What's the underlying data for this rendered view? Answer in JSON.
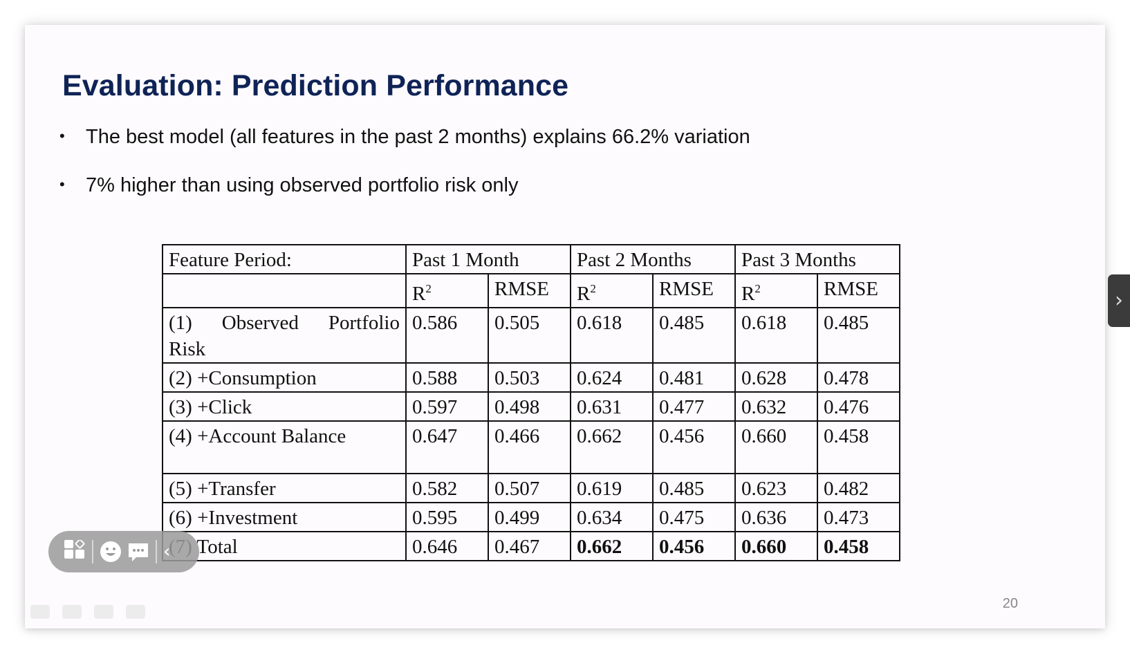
{
  "slide": {
    "title": "Evaluation: Prediction Performance",
    "bullets": [
      {
        "marker": "•",
        "text": "The best model (all features in the past 2 months) explains 66.2% variation"
      },
      {
        "marker": "•",
        "text": "7% higher than using observed portfolio risk only"
      }
    ],
    "page_number": "20"
  },
  "table": {
    "feature_period_label": "Feature Period:",
    "periods": [
      "Past 1 Month",
      "Past 2 Months",
      "Past 3 Months"
    ],
    "metric_r": "R",
    "metric_r_sup": "2",
    "metric_rmse": "RMSE",
    "row1_label_parts": [
      "(1)",
      "Observed",
      "Portfolio"
    ],
    "row1_label_line2": "Risk",
    "rows": [
      {
        "label": "(1) Observed Portfolio Risk",
        "values": [
          "0.586",
          "0.505",
          "0.618",
          "0.485",
          "0.618",
          "0.485"
        ]
      },
      {
        "label": "(2) +Consumption",
        "values": [
          "0.588",
          "0.503",
          "0.624",
          "0.481",
          "0.628",
          "0.478"
        ]
      },
      {
        "label": "(3) +Click",
        "values": [
          "0.597",
          "0.498",
          "0.631",
          "0.477",
          "0.632",
          "0.476"
        ]
      },
      {
        "label": "(4) +Account Balance",
        "values": [
          "0.647",
          "0.466",
          "0.662",
          "0.456",
          "0.660",
          "0.458"
        ]
      },
      {
        "label": "(5) +Transfer",
        "values": [
          "0.582",
          "0.507",
          "0.619",
          "0.485",
          "0.623",
          "0.482"
        ]
      },
      {
        "label": "(6) +Investment",
        "values": [
          "0.595",
          "0.499",
          "0.634",
          "0.475",
          "0.636",
          "0.473"
        ]
      },
      {
        "label": "(7) Total",
        "values": [
          "0.646",
          "0.467",
          "0.662",
          "0.456",
          "0.660",
          "0.458"
        ]
      }
    ]
  },
  "controls": {
    "next_icon": "chevron-right-icon",
    "next_glyph": "›",
    "floating_toolbar_icons": [
      "apps-icon",
      "emoji-icon",
      "chat-icon",
      "chevron-left-icon"
    ],
    "collapse_glyph": "‹"
  },
  "colors": {
    "title": "#0f2356",
    "floating_toolbar": "#9b9b9b",
    "next_tab": "#3b3b3b"
  }
}
